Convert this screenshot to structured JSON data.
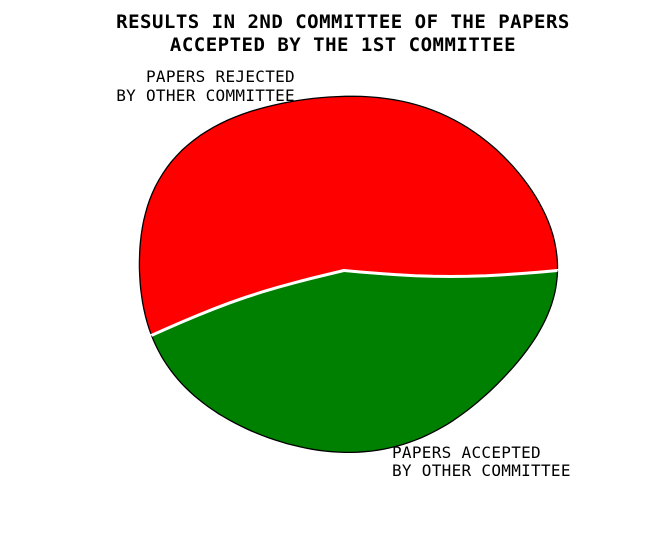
{
  "chart_data": {
    "type": "pie",
    "title": [
      "RESULTS IN 2ND COMMITTEE OF THE PAPERS",
      "ACCEPTED BY THE 1ST COMMITTEE"
    ],
    "slices": [
      {
        "label": [
          "PAPERS REJECTED",
          "BY OTHER COMMITTEE"
        ],
        "value": 56,
        "color": "#ff0000"
      },
      {
        "label": [
          "PAPERS ACCEPTED",
          "BY OTHER COMMITTEE"
        ],
        "value": 44,
        "color": "#008000"
      }
    ],
    "start_angle_deg": 0,
    "direction": "counterclockwise",
    "legend": "none"
  }
}
